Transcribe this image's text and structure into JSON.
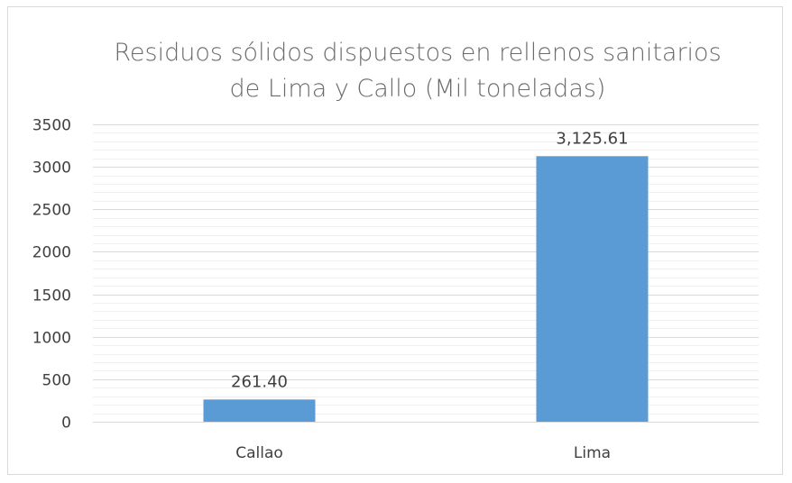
{
  "chart_data": {
    "type": "bar",
    "title_lines": [
      "Residuos sólidos dispuestos en rellenos sanitarios",
      "de Lima y Callo (Mil toneladas)"
    ],
    "categories": [
      "Callao",
      "Lima"
    ],
    "values": [
      261.4,
      3125.61
    ],
    "data_labels": [
      "261.40",
      "3,125.61"
    ],
    "ylim": [
      0,
      3500
    ],
    "y_ticks": [
      "0",
      "500",
      "1000",
      "1500",
      "2000",
      "2500",
      "3000",
      "3500"
    ],
    "grid": true,
    "legend": "none",
    "bar_color": "#5b9bd5",
    "grid_color": "#d9d9d9",
    "minor_grid_color": "#efefef"
  }
}
